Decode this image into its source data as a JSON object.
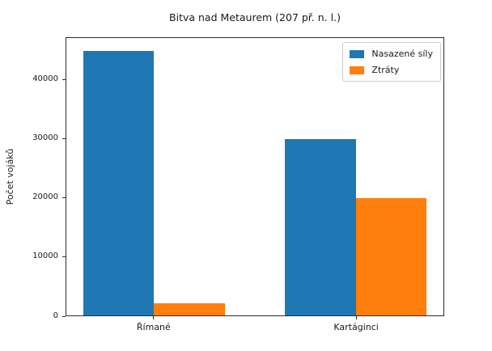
{
  "chart_data": {
    "type": "bar",
    "title": "Bitva nad Metaurem (207 př. n. l.)",
    "xlabel": "",
    "ylabel": "Počet vojáků",
    "categories": [
      "Římané",
      "Kartáginci"
    ],
    "series": [
      {
        "name": "Nasazené síly",
        "color": "#1f77b4",
        "values": [
          45000,
          30000
        ]
      },
      {
        "name": "Ztráty",
        "color": "#ff7f0e",
        "values": [
          2000,
          20000
        ]
      }
    ],
    "yticks": [
      0,
      10000,
      20000,
      30000,
      40000
    ],
    "ylim": [
      0,
      47250
    ],
    "xlim": [
      -0.435,
      1.435
    ],
    "bar_width": 0.35,
    "legend_position": "upper right",
    "grid": false,
    "background_color": "#ffffff",
    "axis_color": "#2b2b2b",
    "text_color": "#1a1a1a"
  }
}
